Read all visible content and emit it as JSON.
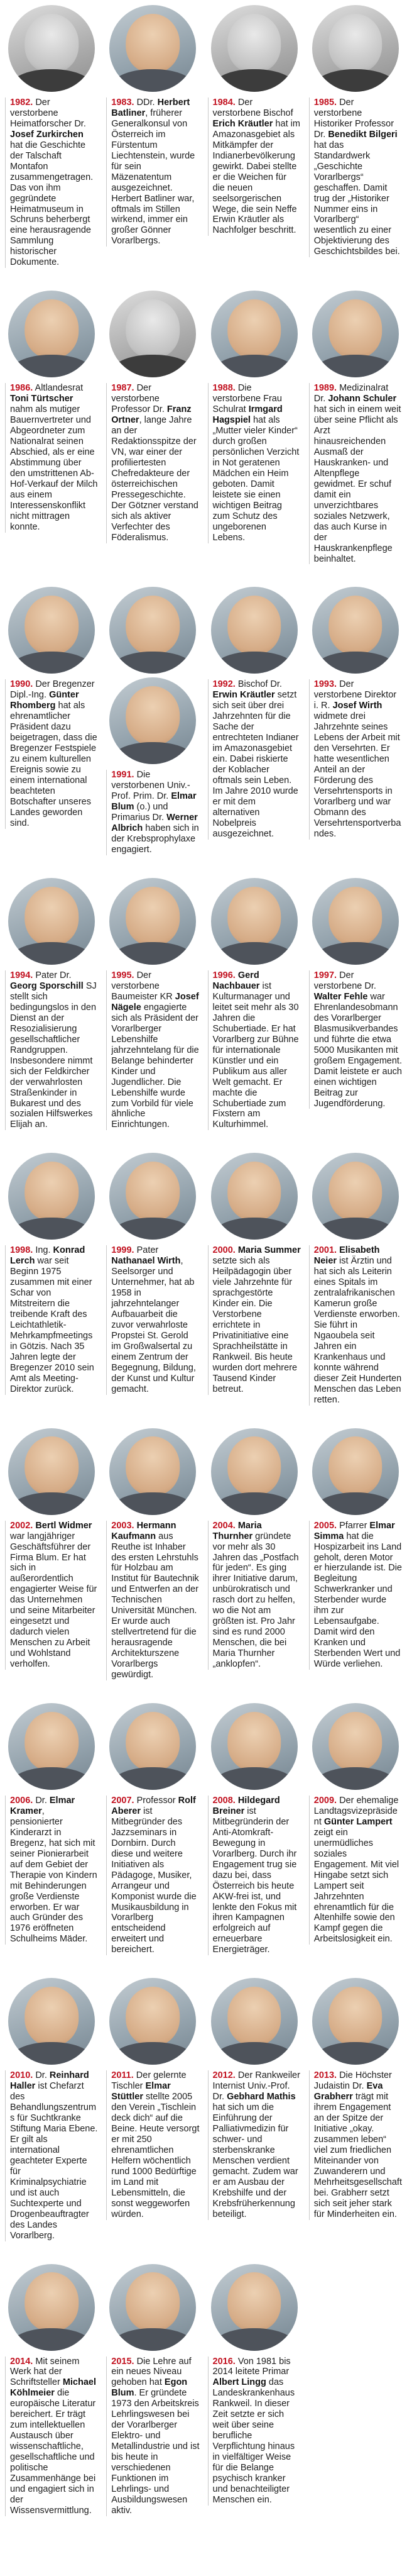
{
  "page": {
    "background": "#ffffff",
    "accent_color": "#c21321",
    "rule_color": "#c9c9c9",
    "text_color": "#1d1d1d",
    "portrait_icon": "portrait-photo"
  },
  "entries": [
    {
      "year": "1982.",
      "photos": [
        "bw"
      ],
      "segments": [
        {
          "text": "Der verstorbene Heimatforscher Dr. ",
          "bold": false
        },
        {
          "text": "Josef Zurkirchen",
          "bold": true
        },
        {
          "text": " hat die Geschichte der Talschaft Montafon zusammengetragen. Das von ihm gegründete Heimatmuseum in Schruns beherbergt eine herausragende Sammlung historischer Dokumente.",
          "bold": false
        }
      ]
    },
    {
      "year": "1983.",
      "photos": [
        "color"
      ],
      "segments": [
        {
          "text": "DDr. ",
          "bold": false
        },
        {
          "text": "Herbert Batliner",
          "bold": true
        },
        {
          "text": ", früherer Generalkonsul von Österreich im Fürstentum Liechtenstein, wurde für sein Mäzenatentum ausgezeichnet. Herbert Batliner war, oftmals im Stillen wirkend, immer ein großer Gönner Vorarlbergs.",
          "bold": false
        }
      ]
    },
    {
      "year": "1984.",
      "photos": [
        "bw"
      ],
      "segments": [
        {
          "text": "Der verstorbene Bischof ",
          "bold": false
        },
        {
          "text": "Erich Kräutler",
          "bold": true
        },
        {
          "text": " hat im Amazonasgebiet als Mitkämpfer der Indianerbevölkerung gewirkt. Dabei stellte er die Weichen für die neuen seelsorgerischen Wege, die sein Neffe Erwin Kräutler als Nachfolger beschritt.",
          "bold": false
        }
      ]
    },
    {
      "year": "1985.",
      "photos": [
        "bw"
      ],
      "segments": [
        {
          "text": "Der verstorbene Historiker Professor Dr. ",
          "bold": false
        },
        {
          "text": "Benedikt Bilgeri",
          "bold": true
        },
        {
          "text": " hat das Standardwerk „Geschichte Vorarlbergs“ geschaffen. Damit trug der „Historiker Nummer eins in Vorarlberg“ wesentlich zu einer Objektivierung des Geschichtsbildes bei.",
          "bold": false
        }
      ]
    },
    {
      "year": "1986.",
      "photos": [
        "color"
      ],
      "segments": [
        {
          "text": "Altlandesrat ",
          "bold": false
        },
        {
          "text": "Toni Türtscher",
          "bold": true
        },
        {
          "text": " nahm als mutiger Bauernvertreter und Abgeordneter zum Nationalrat seinen Abschied, als er eine Abstimmung über den umstrittenen Ab-Hof-Verkauf der Milch aus einem Interessenskonflikt nicht mittragen konnte.",
          "bold": false
        }
      ]
    },
    {
      "year": "1987.",
      "photos": [
        "bw"
      ],
      "segments": [
        {
          "text": "Der verstorbene Professor Dr. ",
          "bold": false
        },
        {
          "text": "Franz Ortner",
          "bold": true
        },
        {
          "text": ", lange Jahre an der Redaktionsspitze der VN, war einer der profiliertesten Chefredakteure der österreichischen Pressegeschichte. Der Götzner verstand sich als aktiver Verfechter des Föderalismus.",
          "bold": false
        }
      ]
    },
    {
      "year": "1988.",
      "photos": [
        "color"
      ],
      "segments": [
        {
          "text": "Die verstorbene Frau Schulrat ",
          "bold": false
        },
        {
          "text": "Irmgard Hagspiel",
          "bold": true
        },
        {
          "text": " hat als „Mutter vieler Kinder“ durch großen persönlichen Verzicht in Not geratenen Mädchen ein Heim geboten. Damit leistete sie einen wichtigen Beitrag zum Schutz des ungeborenen Lebens.",
          "bold": false
        }
      ]
    },
    {
      "year": "1989.",
      "photos": [
        "color"
      ],
      "segments": [
        {
          "text": "Medizinalrat Dr. ",
          "bold": false
        },
        {
          "text": "Johann Schuler",
          "bold": true
        },
        {
          "text": " hat sich in einem weit über seine Pflicht als Arzt hinausreichenden Ausmaß der Hauskranken- und Altenpflege gewidmet. Er schuf damit ein unverzichtbares soziales Netzwerk, das auch Kurse in der Hauskrankenpflege beinhaltet.",
          "bold": false
        }
      ]
    },
    {
      "year": "1990.",
      "photos": [
        "color"
      ],
      "segments": [
        {
          "text": "Der Bregenzer Dipl.-Ing. ",
          "bold": false
        },
        {
          "text": "Günter Rhomberg",
          "bold": true
        },
        {
          "text": " hat als ehrenamtlicher Präsident dazu beigetragen, dass die Bregenzer Festspiele zu einem kulturellen Ereignis sowie zu einem international beachteten Botschafter unseres Landes geworden sind.",
          "bold": false
        }
      ]
    },
    {
      "year": "1991.",
      "photos": [
        "color",
        "color"
      ],
      "segments": [
        {
          "text": "Die verstorbenen Univ.-Prof. Prim. Dr. ",
          "bold": false
        },
        {
          "text": "Elmar Blum",
          "bold": true
        },
        {
          "text": " (o.) und Primarius Dr. ",
          "bold": false
        },
        {
          "text": "Werner Albrich",
          "bold": true
        },
        {
          "text": " haben sich in der Krebsprophylaxe engagiert.",
          "bold": false
        }
      ]
    },
    {
      "year": "1992.",
      "photos": [
        "color"
      ],
      "segments": [
        {
          "text": "Bischof Dr. ",
          "bold": false
        },
        {
          "text": "Erwin Kräutler",
          "bold": true
        },
        {
          "text": " setzt sich seit über drei Jahrzehnten für die Sache der entrechteten Indianer im Amazonasgebiet ein. Dabei riskierte der Koblacher oftmals sein Leben. Im Jahre 2010 wurde er mit dem alternativen Nobelpreis ausgezeichnet.",
          "bold": false
        }
      ]
    },
    {
      "year": "1993.",
      "photos": [
        "color"
      ],
      "segments": [
        {
          "text": "Der verstorbene Direktor i. R. ",
          "bold": false
        },
        {
          "text": "Josef Wirth",
          "bold": true
        },
        {
          "text": " widmete drei Jahrzehnte seines Lebens der Arbeit mit den Versehrten. Er hatte wesentlichen Anteil an der Förderung des Versehrtensports in Vorarlberg und war Obmann des Versehrtensportverbandes.",
          "bold": false
        }
      ]
    },
    {
      "year": "1994.",
      "photos": [
        "color"
      ],
      "segments": [
        {
          "text": "Pater Dr. ",
          "bold": false
        },
        {
          "text": "Georg Sporschill",
          "bold": true
        },
        {
          "text": " SJ stellt sich bedingungslos in den Dienst an der Resozialisierung gesellschaftlicher Randgruppen. Insbesondere nimmt sich der Feldkircher der verwahrlosten Straßenkinder in Bukarest und des sozialen Hilfswerkes Elijah an.",
          "bold": false
        }
      ]
    },
    {
      "year": "1995.",
      "photos": [
        "color"
      ],
      "segments": [
        {
          "text": "Der verstorbene Baumeister KR ",
          "bold": false
        },
        {
          "text": "Josef Nägele",
          "bold": true
        },
        {
          "text": " engagierte sich als Präsident der Vorarlberger Lebenshilfe jahrzehntelang für die Belange behinderter Kinder und Jugendlicher. Die Lebenshilfe wurde zum Vorbild für viele ähnliche Einrichtungen.",
          "bold": false
        }
      ]
    },
    {
      "year": "1996.",
      "photos": [
        "color"
      ],
      "segments": [
        {
          "text": "Gerd Nachbauer",
          "bold": true
        },
        {
          "text": " ist Kulturmanager und leitet seit mehr als 30 Jahren die Schubertiade. Er hat Vorarlberg zur Bühne für internationale Künstler und ein Publikum aus aller Welt gemacht. Er machte die Schubertiade zum Fixstern am Kulturhimmel.",
          "bold": false
        }
      ]
    },
    {
      "year": "1997.",
      "photos": [
        "color"
      ],
      "segments": [
        {
          "text": "Der verstorbene Dr. ",
          "bold": false
        },
        {
          "text": "Walter Fehle",
          "bold": true
        },
        {
          "text": " war Ehrenlandesobmann des Vorarlberger Blasmusikverbandes und führte die etwa 5000 Musikanten mit großem Engagement. Damit leistete er auch einen wichtigen Beitrag zur Jugendförderung.",
          "bold": false
        }
      ]
    },
    {
      "year": "1998.",
      "photos": [
        "color"
      ],
      "segments": [
        {
          "text": "Ing. ",
          "bold": false
        },
        {
          "text": "Konrad Lerch",
          "bold": true
        },
        {
          "text": " war seit Beginn 1975 zusammen mit einer Schar von Mitstreitern die treibende Kraft des Leichtathletik-Mehrkampfmeetings in Götzis. Nach 35 Jahren legte der Bregenzer 2010 sein Amt als Meeting-Direktor zurück.",
          "bold": false
        }
      ]
    },
    {
      "year": "1999.",
      "photos": [
        "color"
      ],
      "segments": [
        {
          "text": "Pater ",
          "bold": false
        },
        {
          "text": "Nathanael Wirth",
          "bold": true
        },
        {
          "text": ", Seelsorger und Unternehmer, hat ab 1958 in jahrzehntelanger Aufbauarbeit die zuvor verwahrloste Propstei St. Gerold im Großwalsertal zu einem Zentrum der Begegnung, Bildung, der Kunst und Kultur gemacht.",
          "bold": false
        }
      ]
    },
    {
      "year": "2000.",
      "photos": [
        "color"
      ],
      "segments": [
        {
          "text": "Maria Summer",
          "bold": true
        },
        {
          "text": " setzte sich als Heilpädagogin über viele Jahrzehnte für sprachgestörte Kinder ein. Die Verstorbene errichtete in Privatinitiative eine Sprachheilstätte in Rankweil. Bis heute wurden dort mehrere Tausend Kinder betreut.",
          "bold": false
        }
      ]
    },
    {
      "year": "2001.",
      "photos": [
        "color"
      ],
      "segments": [
        {
          "text": "Elisabeth Neier",
          "bold": true
        },
        {
          "text": " ist Ärztin und hat sich als Leiterin eines Spitals im zentralafrikanischen Kamerun große Verdienste erworben. Sie führt in Ngaoubela seit Jahren ein Krankenhaus und konnte während dieser Zeit Hunderten Menschen das Leben retten.",
          "bold": false
        }
      ]
    },
    {
      "year": "2002.",
      "photos": [
        "color"
      ],
      "segments": [
        {
          "text": "Bertl Widmer",
          "bold": true
        },
        {
          "text": " war langjähriger Geschäftsführer der Firma Blum. Er hat sich in außerordentlich engagierter Weise für das Unternehmen und seine Mitarbeiter eingesetzt und dadurch vielen Menschen zu Arbeit und Wohlstand verholfen.",
          "bold": false
        }
      ]
    },
    {
      "year": "2003.",
      "photos": [
        "color"
      ],
      "segments": [
        {
          "text": "Hermann Kaufmann",
          "bold": true
        },
        {
          "text": " aus Reuthe ist Inhaber des ersten Lehrstuhls für Holzbau am Institut für Bautechnik und Entwerfen an der Technischen Universität München. Er wurde auch stellvertretend für die herausragende Architekturszene Vorarlbergs gewürdigt.",
          "bold": false
        }
      ]
    },
    {
      "year": "2004.",
      "photos": [
        "color"
      ],
      "segments": [
        {
          "text": "Maria Thurnher",
          "bold": true
        },
        {
          "text": " gründete vor mehr als 30 Jahren das „Postfach für jeden“. Es ging ihrer Initiative darum, unbürokratisch und rasch dort zu helfen, wo die Not am größten ist. Pro Jahr sind es rund 2000 Menschen, die bei Maria Thurnher „anklopfen“.",
          "bold": false
        }
      ]
    },
    {
      "year": "2005.",
      "photos": [
        "color"
      ],
      "segments": [
        {
          "text": "Pfarrer ",
          "bold": false
        },
        {
          "text": "Elmar Simma",
          "bold": true
        },
        {
          "text": " hat die Hospizarbeit ins Land geholt, deren Motor er hierzulande ist. Die Begleitung Schwerkranker und Sterbender wurde ihm zur Lebensaufgabe. Damit wird den Kranken und Sterbenden Wert und Würde verliehen.",
          "bold": false
        }
      ]
    },
    {
      "year": "2006.",
      "photos": [
        "color"
      ],
      "segments": [
        {
          "text": "Dr. ",
          "bold": false
        },
        {
          "text": "Elmar Kramer",
          "bold": true
        },
        {
          "text": ", pensionierter Kinderarzt in Bregenz, hat sich mit seiner Pionierarbeit auf dem Gebiet der Therapie von Kindern mit Behinderungen große Verdienste erworben. Er war auch Gründer des 1976 eröffneten Schulheims Mäder.",
          "bold": false
        }
      ]
    },
    {
      "year": "2007.",
      "photos": [
        "color"
      ],
      "segments": [
        {
          "text": "Professor ",
          "bold": false
        },
        {
          "text": "Rolf Aberer",
          "bold": true
        },
        {
          "text": " ist Mitbegründer des Jazzseminars in Dornbirn. Durch diese und weitere Initiativen als Pädagoge, Musiker, Arrangeur und Komponist wurde die Musikausbildung in Vorarlberg entscheidend erweitert und bereichert.",
          "bold": false
        }
      ]
    },
    {
      "year": "2008.",
      "photos": [
        "color"
      ],
      "segments": [
        {
          "text": "Hildegard Breiner",
          "bold": true
        },
        {
          "text": " ist Mitbegründerin der Anti-Atomkraft-Bewegung in Vorarlberg. Durch ihr Engagement trug sie dazu bei, dass Österreich bis heute AKW-frei ist, und lenkte den Fokus mit ihren Kampagnen erfolgreich auf erneuerbare Energieträger.",
          "bold": false
        }
      ]
    },
    {
      "year": "2009.",
      "photos": [
        "color"
      ],
      "segments": [
        {
          "text": "Der ehemalige Landtagsvizepräsident ",
          "bold": false
        },
        {
          "text": "Günter Lampert",
          "bold": true
        },
        {
          "text": " zeigt ein unermüdliches soziales Engagement. Mit viel Hingabe setzt sich Lampert seit Jahrzehnten ehrenamtlich für die Altenhilfe sowie den Kampf gegen die Arbeitslosigkeit ein.",
          "bold": false
        }
      ]
    },
    {
      "year": "2010.",
      "photos": [
        "color"
      ],
      "segments": [
        {
          "text": "Dr. ",
          "bold": false
        },
        {
          "text": "Reinhard Haller",
          "bold": true
        },
        {
          "text": " ist Chefarzt des Behandlungszentrums für Suchtkranke Stiftung Maria Ebene. Er gilt als international geachteter Experte für Kriminalpsychiatrie und ist auch Suchtexperte und Drogenbeauftragter des Landes Vorarlberg.",
          "bold": false
        }
      ]
    },
    {
      "year": "2011.",
      "photos": [
        "color"
      ],
      "segments": [
        {
          "text": "Der gelernte Tischler ",
          "bold": false
        },
        {
          "text": "Elmar Stüttler",
          "bold": true
        },
        {
          "text": " stellte 2005 den Verein „Tischlein deck dich“ auf die Beine. Heute versorgt er mit 250 ehrenamtlichen Helfern wöchentlich rund 1000 Bedürftige im Land mit Lebensmitteln, die sonst weggeworfen würden.",
          "bold": false
        }
      ]
    },
    {
      "year": "2012.",
      "photos": [
        "color"
      ],
      "segments": [
        {
          "text": "Der Rankweiler Internist Univ.-Prof. Dr. ",
          "bold": false
        },
        {
          "text": "Gebhard Mathis",
          "bold": true
        },
        {
          "text": " hat sich um die Einführung der Palliativmedizin für schwer- und sterbenskranke Menschen verdient gemacht. Zudem war er am Ausbau der Krebshilfe und der Krebsfrüherkennung beteiligt.",
          "bold": false
        }
      ]
    },
    {
      "year": "2013.",
      "photos": [
        "color"
      ],
      "segments": [
        {
          "text": "Die Höchster Judaistin Dr. ",
          "bold": false
        },
        {
          "text": "Eva Grabherr",
          "bold": true
        },
        {
          "text": " trägt mit ihrem Engagement an der Spitze der Initiative „okay. zusammen leben“ viel zum friedlichen Miteinander von Zuwanderern und Mehrheitsgesellschaft bei. Grabherr setzt sich seit jeher stark für Minderheiten ein.",
          "bold": false
        }
      ]
    },
    {
      "year": "2014.",
      "photos": [
        "color"
      ],
      "segments": [
        {
          "text": "Mit seinem Werk hat der Schriftsteller ",
          "bold": false
        },
        {
          "text": "Michael Köhlmeier",
          "bold": true
        },
        {
          "text": " die europäische Literatur bereichert. Er trägt zum intellektuellen Austausch über wissenschaftliche, gesellschaftliche und politische Zusammenhänge bei und engagiert sich in der Wissensvermittlung.",
          "bold": false
        }
      ]
    },
    {
      "year": "2015.",
      "photos": [
        "color"
      ],
      "segments": [
        {
          "text": "Die Lehre auf ein neues Niveau gehoben hat ",
          "bold": false
        },
        {
          "text": "Egon Blum",
          "bold": true
        },
        {
          "text": ". Er gründete 1973 den Arbeitskreis Lehrlingswesen bei der Vorarlberger Elektro- und Metallindustrie und ist bis heute in verschiedenen Funktionen im Lehrlings- und Ausbildungswesen aktiv.",
          "bold": false
        }
      ]
    },
    {
      "year": "2016.",
      "photos": [
        "color"
      ],
      "segments": [
        {
          "text": "Von 1981 bis 2014 leitete Primar ",
          "bold": false
        },
        {
          "text": "Albert Lingg",
          "bold": true
        },
        {
          "text": " das Landeskrankenhaus Rankweil. In dieser Zeit setzte er sich weit über seine berufliche Verpflichtung hinaus in vielfältiger Weise für die Belange psychisch kranker und benachteiligter Menschen ein.",
          "bold": false
        }
      ]
    }
  ]
}
